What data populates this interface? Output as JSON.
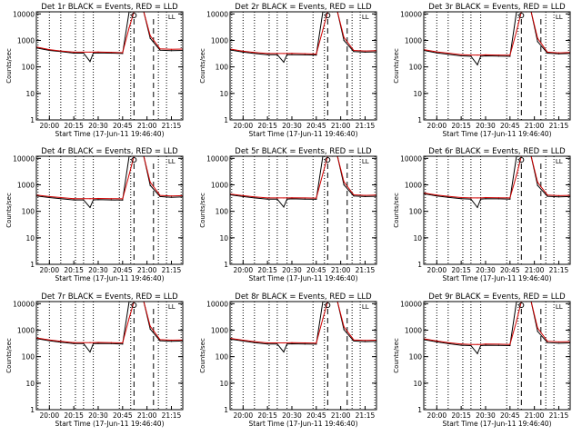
{
  "colors": {
    "events": "#000000",
    "lld": "#d00000",
    "axis": "#000000"
  },
  "shared": {
    "ylabel": "Counts/sec",
    "xlabel": "Start Time (17-Jun-11 19:46:40)",
    "x_ticks": [
      "20:00",
      "20:15",
      "20:30",
      "20:45",
      "21:00",
      "21:15"
    ],
    "y_ticks": [
      "1",
      "10",
      "100",
      "1000",
      "10000"
    ],
    "corner_mark": "LL"
  },
  "chart_data": [
    {
      "type": "line",
      "title": "Det 1r  BLACK = Events, RED = LLD",
      "xlim": [
        "19:52",
        "21:22"
      ],
      "ylim": [
        1,
        12000
      ],
      "yscale": "log",
      "x": [
        "19:52",
        "20:00",
        "20:07",
        "20:15",
        "20:21",
        "20:25",
        "20:27",
        "20:30",
        "20:38",
        "20:45",
        "20:49",
        "20:52",
        "20:55",
        "20:58",
        "21:02",
        "21:08",
        "21:15",
        "21:22"
      ],
      "series": [
        {
          "name": "Events",
          "values": [
            520,
            420,
            380,
            330,
            330,
            160,
            330,
            340,
            330,
            320,
            12000,
            12000,
            12000,
            12000,
            1200,
            430,
            410,
            420
          ]
        },
        {
          "name": "LLD",
          "values": [
            560,
            450,
            400,
            360,
            360,
            360,
            360,
            365,
            355,
            345,
            3000,
            12000,
            12000,
            12000,
            1500,
            480,
            460,
            470
          ]
        }
      ],
      "dashed_lines": [
        "20:52",
        "21:04"
      ],
      "dotted_lines": [
        "19:53",
        "20:00",
        "20:07",
        "20:16",
        "20:21",
        "20:27",
        "20:43",
        "20:50",
        "21:07",
        "21:12",
        "21:21"
      ]
    },
    {
      "type": "line",
      "title": "Det 2r  BLACK = Events, RED = LLD",
      "xlim": [
        "19:52",
        "21:22"
      ],
      "ylim": [
        1,
        12000
      ],
      "yscale": "log",
      "x": [
        "19:52",
        "20:00",
        "20:07",
        "20:15",
        "20:21",
        "20:25",
        "20:27",
        "20:30",
        "20:38",
        "20:45",
        "20:49",
        "20:52",
        "20:55",
        "20:58",
        "21:02",
        "21:08",
        "21:15",
        "21:22"
      ],
      "series": [
        {
          "name": "Events",
          "values": [
            440,
            360,
            320,
            290,
            290,
            150,
            290,
            290,
            285,
            280,
            12000,
            12000,
            12000,
            12000,
            1000,
            380,
            360,
            370
          ]
        },
        {
          "name": "LLD",
          "values": [
            470,
            390,
            350,
            320,
            320,
            320,
            320,
            325,
            315,
            305,
            2500,
            12000,
            12000,
            12000,
            1300,
            420,
            400,
            410
          ]
        }
      ],
      "dashed_lines": [
        "20:52",
        "21:04"
      ],
      "dotted_lines": [
        "19:53",
        "20:00",
        "20:07",
        "20:16",
        "20:21",
        "20:27",
        "20:43",
        "20:50",
        "21:07",
        "21:12",
        "21:21"
      ]
    },
    {
      "type": "line",
      "title": "Det 3r  BLACK = Events, RED = LLD",
      "xlim": [
        "19:52",
        "21:22"
      ],
      "ylim": [
        1,
        12000
      ],
      "yscale": "log",
      "x": [
        "19:52",
        "20:00",
        "20:07",
        "20:15",
        "20:21",
        "20:25",
        "20:27",
        "20:30",
        "20:38",
        "20:45",
        "20:49",
        "20:52",
        "20:55",
        "20:58",
        "21:02",
        "21:08",
        "21:15",
        "21:22"
      ],
      "series": [
        {
          "name": "Events",
          "values": [
            420,
            340,
            300,
            260,
            250,
            120,
            250,
            260,
            255,
            250,
            12000,
            12000,
            12000,
            12000,
            900,
            330,
            310,
            320
          ]
        },
        {
          "name": "LLD",
          "values": [
            450,
            370,
            330,
            290,
            280,
            280,
            280,
            285,
            280,
            275,
            2200,
            12000,
            12000,
            12000,
            1200,
            360,
            340,
            350
          ]
        }
      ],
      "dashed_lines": [
        "20:52",
        "21:04"
      ],
      "dotted_lines": [
        "19:53",
        "20:00",
        "20:07",
        "20:16",
        "20:21",
        "20:27",
        "20:43",
        "20:50",
        "21:07",
        "21:12",
        "21:21"
      ]
    },
    {
      "type": "line",
      "title": "Det 4r  BLACK = Events, RED = LLD",
      "xlim": [
        "19:52",
        "21:22"
      ],
      "ylim": [
        1,
        12000
      ],
      "yscale": "log",
      "x": [
        "19:52",
        "20:00",
        "20:07",
        "20:15",
        "20:21",
        "20:25",
        "20:27",
        "20:30",
        "20:38",
        "20:45",
        "20:49",
        "20:52",
        "20:55",
        "20:58",
        "21:02",
        "21:08",
        "21:15",
        "21:22"
      ],
      "series": [
        {
          "name": "Events",
          "values": [
            380,
            330,
            300,
            270,
            270,
            140,
            270,
            275,
            270,
            265,
            12000,
            12000,
            12000,
            12000,
            950,
            360,
            340,
            350
          ]
        },
        {
          "name": "LLD",
          "values": [
            410,
            360,
            330,
            300,
            300,
            300,
            300,
            305,
            300,
            295,
            2400,
            12000,
            12000,
            12000,
            1250,
            400,
            380,
            390
          ]
        }
      ],
      "dashed_lines": [
        "20:52",
        "21:04"
      ],
      "dotted_lines": [
        "19:53",
        "20:00",
        "20:07",
        "20:16",
        "20:21",
        "20:27",
        "20:43",
        "20:50",
        "21:07",
        "21:12",
        "21:21"
      ]
    },
    {
      "type": "line",
      "title": "Det 5r  BLACK = Events, RED = LLD",
      "xlim": [
        "19:52",
        "21:22"
      ],
      "ylim": [
        1,
        12000
      ],
      "yscale": "log",
      "x": [
        "19:52",
        "20:00",
        "20:07",
        "20:15",
        "20:21",
        "20:25",
        "20:27",
        "20:30",
        "20:38",
        "20:45",
        "20:49",
        "20:52",
        "20:55",
        "20:58",
        "21:02",
        "21:08",
        "21:15",
        "21:22"
      ],
      "series": [
        {
          "name": "Events",
          "values": [
            420,
            360,
            320,
            290,
            290,
            145,
            290,
            295,
            290,
            285,
            12000,
            12000,
            12000,
            12000,
            1000,
            380,
            360,
            370
          ]
        },
        {
          "name": "LLD",
          "values": [
            450,
            390,
            350,
            320,
            320,
            320,
            320,
            325,
            320,
            315,
            2600,
            12000,
            12000,
            12000,
            1300,
            420,
            400,
            410
          ]
        }
      ],
      "dashed_lines": [
        "20:52",
        "21:04"
      ],
      "dotted_lines": [
        "19:53",
        "20:00",
        "20:07",
        "20:16",
        "20:21",
        "20:27",
        "20:43",
        "20:50",
        "21:07",
        "21:12",
        "21:21"
      ]
    },
    {
      "type": "line",
      "title": "Det 6r  BLACK = Events, RED = LLD",
      "xlim": [
        "19:52",
        "21:22"
      ],
      "ylim": [
        1,
        12000
      ],
      "yscale": "log",
      "x": [
        "19:52",
        "20:00",
        "20:07",
        "20:15",
        "20:21",
        "20:25",
        "20:27",
        "20:30",
        "20:38",
        "20:45",
        "20:49",
        "20:52",
        "20:55",
        "20:58",
        "21:02",
        "21:08",
        "21:15",
        "21:22"
      ],
      "series": [
        {
          "name": "Events",
          "values": [
            460,
            380,
            340,
            300,
            290,
            140,
            290,
            300,
            295,
            290,
            12000,
            12000,
            12000,
            12000,
            950,
            370,
            350,
            360
          ]
        },
        {
          "name": "LLD",
          "values": [
            490,
            410,
            370,
            330,
            320,
            320,
            320,
            330,
            325,
            320,
            2300,
            12000,
            12000,
            12000,
            1250,
            410,
            390,
            400
          ]
        }
      ],
      "dashed_lines": [
        "20:52",
        "21:04"
      ],
      "dotted_lines": [
        "19:53",
        "20:00",
        "20:07",
        "20:16",
        "20:21",
        "20:27",
        "20:43",
        "20:50",
        "21:07",
        "21:12",
        "21:21"
      ]
    },
    {
      "type": "line",
      "title": "Det 7r  BLACK = Events, RED = LLD",
      "xlim": [
        "19:52",
        "21:22"
      ],
      "ylim": [
        1,
        12000
      ],
      "yscale": "log",
      "x": [
        "19:52",
        "20:00",
        "20:07",
        "20:15",
        "20:21",
        "20:25",
        "20:27",
        "20:30",
        "20:38",
        "20:45",
        "20:49",
        "20:52",
        "20:55",
        "20:58",
        "21:02",
        "21:08",
        "21:15",
        "21:22"
      ],
      "series": [
        {
          "name": "Events",
          "values": [
            480,
            400,
            350,
            310,
            310,
            150,
            310,
            315,
            310,
            300,
            12000,
            12000,
            12000,
            12000,
            1100,
            400,
            380,
            390
          ]
        },
        {
          "name": "LLD",
          "values": [
            510,
            430,
            380,
            340,
            340,
            340,
            340,
            345,
            340,
            330,
            2800,
            12000,
            12000,
            12000,
            1400,
            440,
            420,
            430
          ]
        }
      ],
      "dashed_lines": [
        "20:52",
        "21:04"
      ],
      "dotted_lines": [
        "19:53",
        "20:00",
        "20:07",
        "20:16",
        "20:21",
        "20:27",
        "20:43",
        "20:50",
        "21:07",
        "21:12",
        "21:21"
      ]
    },
    {
      "type": "line",
      "title": "Det 8r  BLACK = Events, RED = LLD",
      "xlim": [
        "19:52",
        "21:22"
      ],
      "ylim": [
        1,
        12000
      ],
      "yscale": "log",
      "x": [
        "19:52",
        "20:00",
        "20:07",
        "20:15",
        "20:21",
        "20:25",
        "20:27",
        "20:30",
        "20:38",
        "20:45",
        "20:49",
        "20:52",
        "20:55",
        "20:58",
        "21:02",
        "21:08",
        "21:15",
        "21:22"
      ],
      "series": [
        {
          "name": "Events",
          "values": [
            460,
            390,
            340,
            300,
            300,
            150,
            300,
            305,
            300,
            295,
            12000,
            12000,
            12000,
            12000,
            1050,
            390,
            370,
            380
          ]
        },
        {
          "name": "LLD",
          "values": [
            490,
            420,
            370,
            330,
            330,
            330,
            330,
            335,
            330,
            325,
            2700,
            12000,
            12000,
            12000,
            1350,
            430,
            410,
            420
          ]
        }
      ],
      "dashed_lines": [
        "20:52",
        "21:04"
      ],
      "dotted_lines": [
        "19:53",
        "20:00",
        "20:07",
        "20:16",
        "20:21",
        "20:27",
        "20:43",
        "20:50",
        "21:07",
        "21:12",
        "21:21"
      ]
    },
    {
      "type": "line",
      "title": "Det 9r  BLACK = Events, RED = LLD",
      "xlim": [
        "19:52",
        "21:22"
      ],
      "ylim": [
        1,
        12000
      ],
      "yscale": "log",
      "x": [
        "19:52",
        "20:00",
        "20:07",
        "20:15",
        "20:21",
        "20:25",
        "20:27",
        "20:30",
        "20:38",
        "20:45",
        "20:49",
        "20:52",
        "20:55",
        "20:58",
        "21:02",
        "21:08",
        "21:15",
        "21:22"
      ],
      "series": [
        {
          "name": "Events",
          "values": [
            440,
            360,
            310,
            270,
            260,
            130,
            260,
            270,
            265,
            260,
            12000,
            12000,
            12000,
            12000,
            900,
            340,
            320,
            330
          ]
        },
        {
          "name": "LLD",
          "values": [
            470,
            390,
            340,
            300,
            290,
            290,
            290,
            300,
            295,
            290,
            2200,
            12000,
            12000,
            12000,
            1200,
            380,
            360,
            370
          ]
        }
      ],
      "dashed_lines": [
        "20:52",
        "21:04"
      ],
      "dotted_lines": [
        "19:53",
        "20:00",
        "20:07",
        "20:16",
        "20:21",
        "20:27",
        "20:43",
        "20:50",
        "21:07",
        "21:12",
        "21:21"
      ]
    }
  ]
}
